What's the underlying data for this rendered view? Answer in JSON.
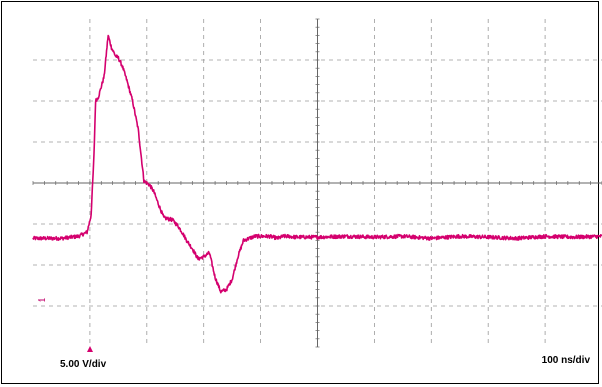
{
  "chart_data": {
    "type": "line",
    "title": "",
    "vertical_scale": "5.00 V/div",
    "horizontal_scale": "100 ns/div",
    "channel_marker": "1",
    "grid": true,
    "divisions": {
      "x": 10,
      "y": 8
    },
    "xlim": [
      0,
      10
    ],
    "ylim": [
      -4,
      4
    ],
    "trace_color": "#d4006e",
    "series": [
      {
        "x": [
          0,
          0.5,
          0.8,
          0.95,
          1.02,
          1.07,
          1.1,
          1.15,
          1.25,
          1.32,
          1.38,
          1.45,
          1.5,
          1.57,
          1.65,
          1.75,
          1.85,
          1.95,
          2.05,
          2.12,
          2.2,
          2.3,
          2.45,
          2.55,
          2.62,
          2.7,
          2.8,
          2.9,
          3.0,
          3.1,
          3.2,
          3.3,
          3.4,
          3.5,
          3.6,
          3.7,
          3.8,
          3.9,
          4.0,
          4.08,
          4.15,
          4.22,
          4.3,
          4.4,
          4.5,
          4.6,
          5.0,
          5.5,
          6.0,
          6.5,
          7.0,
          7.5,
          8.0,
          8.5,
          9.0,
          9.5,
          10.0
        ],
        "y": [
          -1.35,
          -1.35,
          -1.3,
          -1.2,
          -0.8,
          0.6,
          2.0,
          2.1,
          2.6,
          3.6,
          3.3,
          3.1,
          3.05,
          2.85,
          2.5,
          2.0,
          1.3,
          0.05,
          -0.05,
          -0.2,
          -0.5,
          -0.85,
          -0.9,
          -1.05,
          -1.2,
          -1.4,
          -1.6,
          -1.85,
          -1.8,
          -1.7,
          -2.3,
          -2.65,
          -2.6,
          -2.35,
          -1.8,
          -1.4,
          -1.35,
          -1.3,
          -1.3,
          -1.3,
          -1.3,
          -1.32,
          -1.35,
          -1.3,
          -1.3,
          -1.32,
          -1.32,
          -1.3,
          -1.32,
          -1.3,
          -1.35,
          -1.3,
          -1.32,
          -1.35,
          -1.3,
          -1.32,
          -1.3
        ]
      }
    ]
  }
}
